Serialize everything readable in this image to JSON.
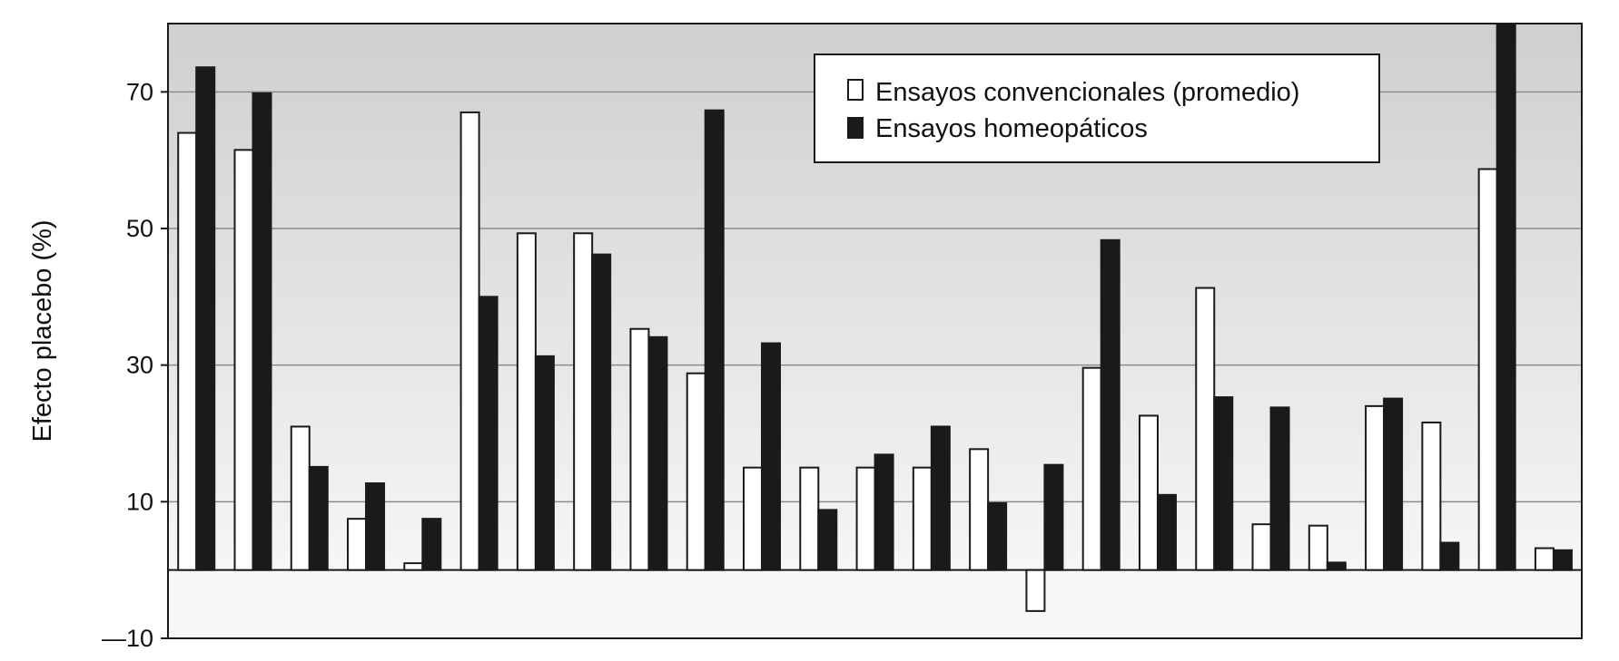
{
  "chart_data": {
    "type": "bar",
    "ylabel": "Efecto placebo (%)",
    "ylim": [
      -10,
      80
    ],
    "yticks": [
      -10,
      10,
      30,
      50,
      70
    ],
    "ytick_labels": [
      "—10",
      "10",
      "30",
      "50",
      "70"
    ],
    "grid": true,
    "legend_position": "top-right",
    "series": [
      {
        "name": "Ensayos convencionales (promedio)",
        "color": "#ffffff",
        "values": [
          64,
          61.5,
          21,
          7.5,
          1,
          67,
          49.3,
          49.3,
          35.3,
          28.8,
          15,
          15,
          15,
          15,
          17.7,
          -6,
          29.6,
          22.6,
          41.3,
          6.7,
          6.5,
          24,
          21.6,
          58.7,
          3.2
        ]
      },
      {
        "name": "Ensayos homeopáticos",
        "color": "#1a1a1a",
        "values": [
          73.6,
          69.8,
          15.1,
          12.7,
          7.5,
          40,
          31.3,
          46.2,
          34.1,
          67.3,
          33.2,
          8.8,
          16.9,
          21,
          9.8,
          15.4,
          48.3,
          11,
          25.3,
          23.8,
          1.1,
          25.1,
          4,
          80,
          2.9
        ]
      }
    ]
  }
}
